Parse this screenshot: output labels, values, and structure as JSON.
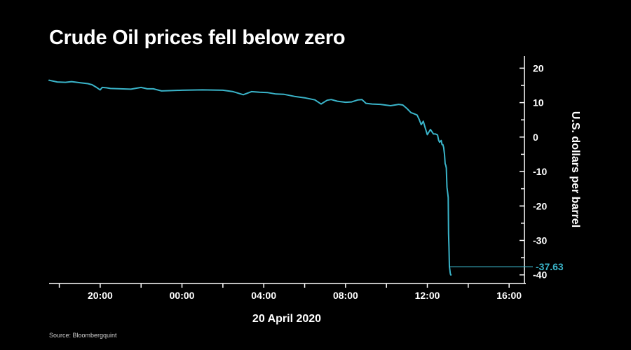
{
  "title": "Crude Oil prices fell below zero",
  "source": "Source: Bloombergquint",
  "colors": {
    "background": "#000000",
    "text": "#ffffff",
    "series": "#3ab4c9"
  },
  "chart_data": {
    "type": "line",
    "title": "Crude Oil prices fell below zero",
    "xlabel": "20 April 2020",
    "ylabel": "U.S. dollars per barrel",
    "x_ticks": [
      "20:00",
      "00:00",
      "04:00",
      "08:00",
      "12:00",
      "16:00"
    ],
    "x_tick_hours": [
      20,
      24,
      28,
      32,
      36,
      40
    ],
    "xlim_hours": [
      17.5,
      40.2
    ],
    "y_ticks": [
      "20",
      "10",
      "0",
      "-10",
      "-20",
      "-30",
      "-40"
    ],
    "ylim": [
      -42.5,
      21.5
    ],
    "y_axis_position": "right",
    "grid": false,
    "annotation": {
      "label": "-37.63",
      "value": -37.63
    },
    "series": [
      {
        "x": [
          17.5,
          17.9,
          18.3,
          18.6,
          19.0,
          19.4,
          19.6,
          19.8,
          20.0,
          20.1,
          20.3,
          20.5,
          21.0,
          21.5,
          22.0,
          22.3,
          22.6,
          23.0,
          23.5,
          24.0,
          25.0,
          26.0,
          26.5,
          27.0,
          27.4,
          27.8,
          28.2,
          28.6,
          29.0,
          29.5,
          30.0,
          30.5,
          30.8,
          31.1,
          31.3,
          31.6,
          32.0,
          32.3,
          32.6,
          32.8,
          33.0,
          33.3,
          33.7,
          34.2,
          34.6,
          34.8,
          35.0,
          35.2,
          35.3,
          35.5,
          35.6,
          35.7,
          35.8,
          35.9,
          36.0,
          36.15,
          36.3,
          36.4,
          36.5,
          36.55,
          36.6,
          36.68,
          36.72,
          36.76,
          36.8,
          36.84,
          36.87,
          36.9,
          36.93,
          36.96,
          37.0,
          37.02,
          37.04,
          37.06,
          37.08,
          37.1,
          37.12,
          37.14,
          37.16
        ],
        "y": [
          16.5,
          16.0,
          15.9,
          16.1,
          15.8,
          15.5,
          15.2,
          14.5,
          13.7,
          14.4,
          14.3,
          14.1,
          14.0,
          13.9,
          14.4,
          14.0,
          14.0,
          13.4,
          13.5,
          13.6,
          13.7,
          13.6,
          13.2,
          12.3,
          13.2,
          13.0,
          12.9,
          12.5,
          12.4,
          11.8,
          11.4,
          10.8,
          9.6,
          10.7,
          10.9,
          10.4,
          10.1,
          10.2,
          10.8,
          10.9,
          9.8,
          9.6,
          9.5,
          9.1,
          9.5,
          9.3,
          8.3,
          7.1,
          6.9,
          6.4,
          5.1,
          3.6,
          4.6,
          2.6,
          0.7,
          2.2,
          0.9,
          0.9,
          0.6,
          -0.9,
          -1.5,
          -1.0,
          -2.2,
          -2.2,
          -3.0,
          -5.0,
          -7.7,
          -8.2,
          -9.0,
          -14.5,
          -16.5,
          -17.6,
          -28.0,
          -32.0,
          -37.63,
          -38.5,
          -39.5,
          -40.0,
          -40.0
        ]
      }
    ]
  }
}
